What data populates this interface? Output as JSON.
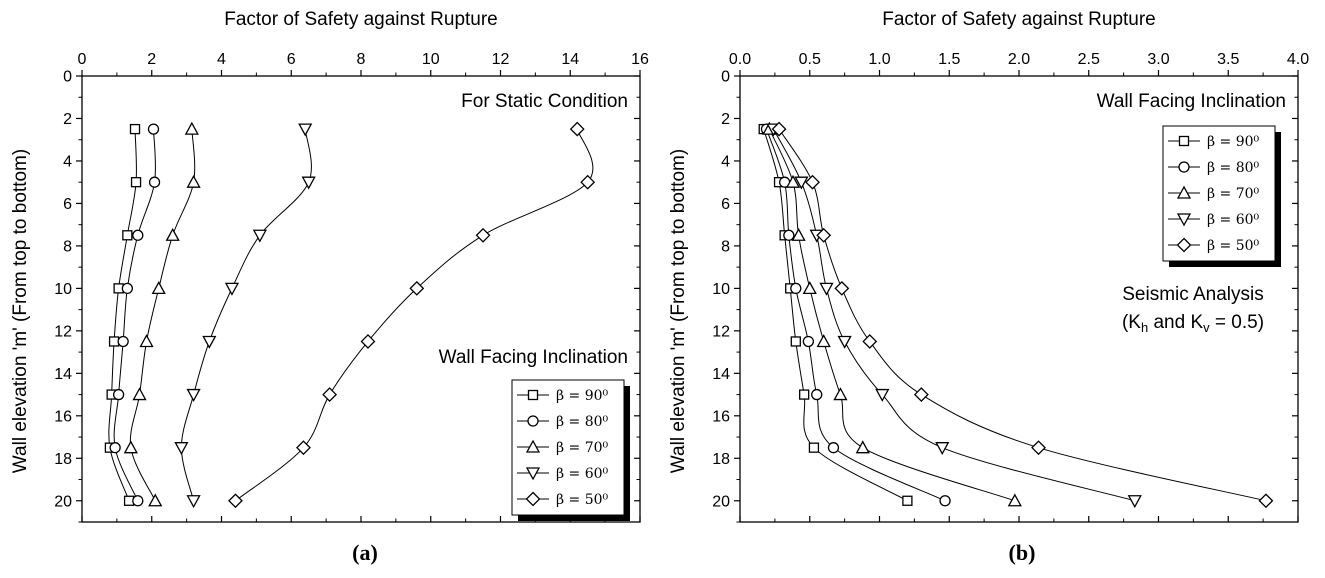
{
  "chart_data": [
    {
      "type": "line",
      "panel_label": "(a)",
      "title": "",
      "xlabel": "Factor of Safety against Rupture",
      "ylabel": "Wall elevation 'm' (From top to bottom)",
      "xlim": [
        0,
        16
      ],
      "ylim": [
        0,
        21
      ],
      "y_inverted": true,
      "x_axis_position": "top",
      "xticks": [
        "0",
        "2",
        "4",
        "6",
        "8",
        "10",
        "12",
        "14",
        "16"
      ],
      "yticks": [
        "0",
        "2",
        "4",
        "6",
        "8",
        "10",
        "12",
        "14",
        "16",
        "18",
        "20"
      ],
      "annotations": [
        "For Static Condition",
        "Wall Facing Inclination"
      ],
      "legend_position": "bottom-right",
      "series": [
        {
          "name": "β = 90⁰",
          "marker": "square",
          "x": [
            1.52,
            1.55,
            1.3,
            1.05,
            0.92,
            0.85,
            0.8,
            1.35
          ],
          "y": [
            2.5,
            5,
            7.5,
            10,
            12.5,
            15,
            17.5,
            20
          ]
        },
        {
          "name": "β = 80⁰",
          "marker": "circle",
          "x": [
            2.05,
            2.08,
            1.6,
            1.3,
            1.18,
            1.05,
            0.95,
            1.6
          ],
          "y": [
            2.5,
            5,
            7.5,
            10,
            12.5,
            15,
            17.5,
            20
          ]
        },
        {
          "name": "β = 70⁰",
          "marker": "triangle-up",
          "x": [
            3.15,
            3.2,
            2.6,
            2.2,
            1.85,
            1.65,
            1.4,
            2.1
          ],
          "y": [
            2.5,
            5,
            7.5,
            10,
            12.5,
            15,
            17.5,
            20
          ]
        },
        {
          "name": "β = 60⁰",
          "marker": "triangle-down",
          "x": [
            6.4,
            6.5,
            5.1,
            4.3,
            3.65,
            3.2,
            2.85,
            3.2
          ],
          "y": [
            2.5,
            5,
            7.5,
            10,
            12.5,
            15,
            17.5,
            20
          ]
        },
        {
          "name": "β = 50⁰",
          "marker": "diamond",
          "x": [
            14.2,
            14.5,
            11.5,
            9.6,
            8.2,
            7.1,
            6.35,
            4.4
          ],
          "y": [
            2.5,
            5,
            7.5,
            10,
            12.5,
            15,
            17.5,
            20
          ]
        }
      ]
    },
    {
      "type": "line",
      "panel_label": "(b)",
      "title": "",
      "xlabel": "Factor of Safety against Rupture",
      "ylabel": "Wall elevation 'm' (From top to bottom)",
      "xlim": [
        0,
        4
      ],
      "ylim": [
        0,
        21
      ],
      "y_inverted": true,
      "x_axis_position": "top",
      "xticks": [
        "0.0",
        "0.5",
        "1.0",
        "1.5",
        "2.0",
        "2.5",
        "3.0",
        "3.5",
        "4.0"
      ],
      "yticks": [
        "0",
        "2",
        "4",
        "6",
        "8",
        "10",
        "12",
        "14",
        "16",
        "18",
        "20"
      ],
      "annotations": [
        "Wall Facing Inclination",
        "Seismic Analysis",
        "(K",
        "h",
        " and K",
        "v",
        " = 0.5)"
      ],
      "legend_position": "top-right",
      "series": [
        {
          "name": "β = 90⁰",
          "marker": "square",
          "x": [
            0.17,
            0.28,
            0.32,
            0.36,
            0.4,
            0.46,
            0.53,
            1.2
          ],
          "y": [
            2.5,
            5,
            7.5,
            10,
            12.5,
            15,
            17.5,
            20
          ]
        },
        {
          "name": "β = 80⁰",
          "marker": "circle",
          "x": [
            0.19,
            0.32,
            0.35,
            0.4,
            0.49,
            0.55,
            0.67,
            1.47
          ],
          "y": [
            2.5,
            5,
            7.5,
            10,
            12.5,
            15,
            17.5,
            20
          ]
        },
        {
          "name": "β = 70⁰",
          "marker": "triangle-up",
          "x": [
            0.21,
            0.38,
            0.42,
            0.5,
            0.6,
            0.72,
            0.88,
            1.97
          ],
          "y": [
            2.5,
            5,
            7.5,
            10,
            12.5,
            15,
            17.5,
            20
          ]
        },
        {
          "name": "β = 60⁰",
          "marker": "triangle-down",
          "x": [
            0.24,
            0.44,
            0.55,
            0.62,
            0.75,
            1.02,
            1.45,
            2.83
          ],
          "y": [
            2.5,
            5,
            7.5,
            10,
            12.5,
            15,
            17.5,
            20
          ]
        },
        {
          "name": "β = 50⁰",
          "marker": "diamond",
          "x": [
            0.28,
            0.52,
            0.6,
            0.73,
            0.93,
            1.3,
            2.14,
            3.77
          ],
          "y": [
            2.5,
            5,
            7.5,
            10,
            12.5,
            15,
            17.5,
            20
          ]
        }
      ]
    }
  ]
}
